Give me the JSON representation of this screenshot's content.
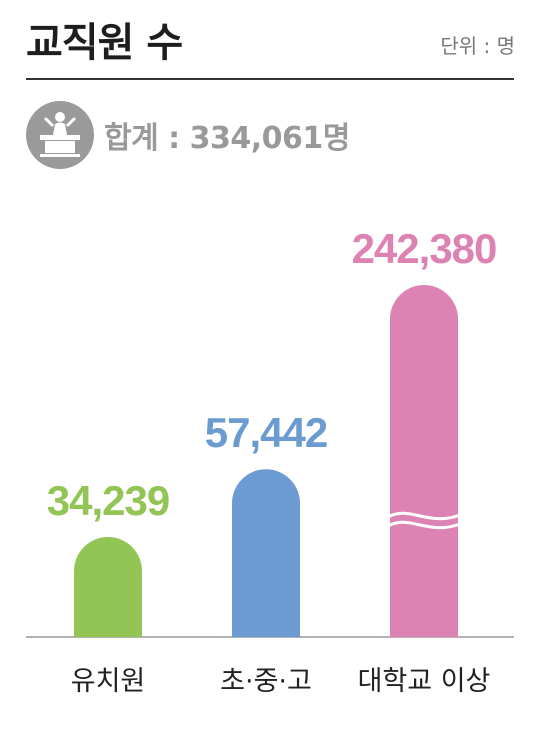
{
  "title": "교직원 수",
  "unit_label": "단위 : 명",
  "total_label": "합계 : 334,061명",
  "total_icon": "lectern-icon",
  "chart_data": {
    "type": "bar",
    "title": "교직원 수",
    "unit": "명",
    "categories": [
      "유치원",
      "초·중·고",
      "대학교 이상"
    ],
    "values": [
      34239,
      57442,
      242380
    ],
    "value_labels": [
      "34,239",
      "57,442",
      "242,380"
    ],
    "colors": [
      "#93c456",
      "#6b9bd1",
      "#dd83b4"
    ],
    "axis_break": "대학교 이상",
    "total": 334061
  }
}
